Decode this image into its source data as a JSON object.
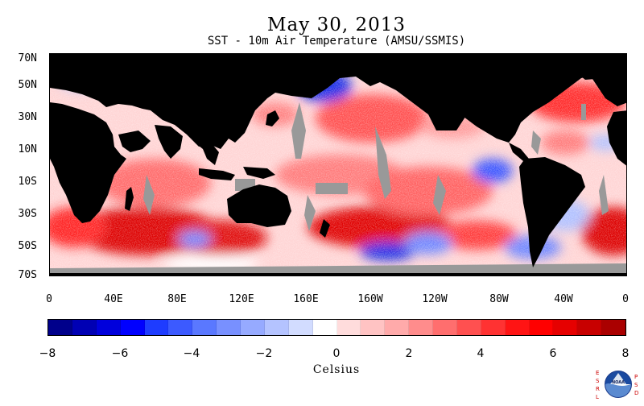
{
  "title": "May 30, 2013",
  "subtitle": "SST - 10m Air Temperature (AMSU/SSMIS)",
  "lat_labels": [
    "70N",
    "50N",
    "30N",
    "10N",
    "10S",
    "30S",
    "50S",
    "70S"
  ],
  "lon_labels": [
    "0",
    "40E",
    "80E",
    "120E",
    "160E",
    "160W",
    "120W",
    "80W",
    "40W",
    "0"
  ],
  "colorbar": {
    "tick_labels": [
      "−8",
      "−6",
      "−4",
      "−2",
      "0",
      "2",
      "4",
      "6",
      "8"
    ],
    "unit_label": "Celsius",
    "colors": [
      "#00008b",
      "#0000b4",
      "#0000dc",
      "#0000ff",
      "#1e3cff",
      "#3c5aff",
      "#5a78ff",
      "#7890ff",
      "#96aaff",
      "#b4c3ff",
      "#d2dcff",
      "#ffffff",
      "#ffdcdc",
      "#ffc3c3",
      "#ffaaaa",
      "#ff8c8c",
      "#ff6e6e",
      "#ff5050",
      "#ff3232",
      "#ff1414",
      "#ff0000",
      "#e60000",
      "#c80000",
      "#aa0000"
    ]
  },
  "map_colors": {
    "land": "#000000",
    "missing": "#999999",
    "ocean_base": "#ffd4d4",
    "warm": "#ff3a3a",
    "strong_warm": "#dd0000",
    "cool": "#6f86ff",
    "strong_cool": "#1b2ee6"
  },
  "logo": {
    "left_text": "ESRL",
    "right_text": "PSD",
    "center_text": "NOAA",
    "left_color": "#cc0000",
    "right_color": "#cc0000"
  }
}
